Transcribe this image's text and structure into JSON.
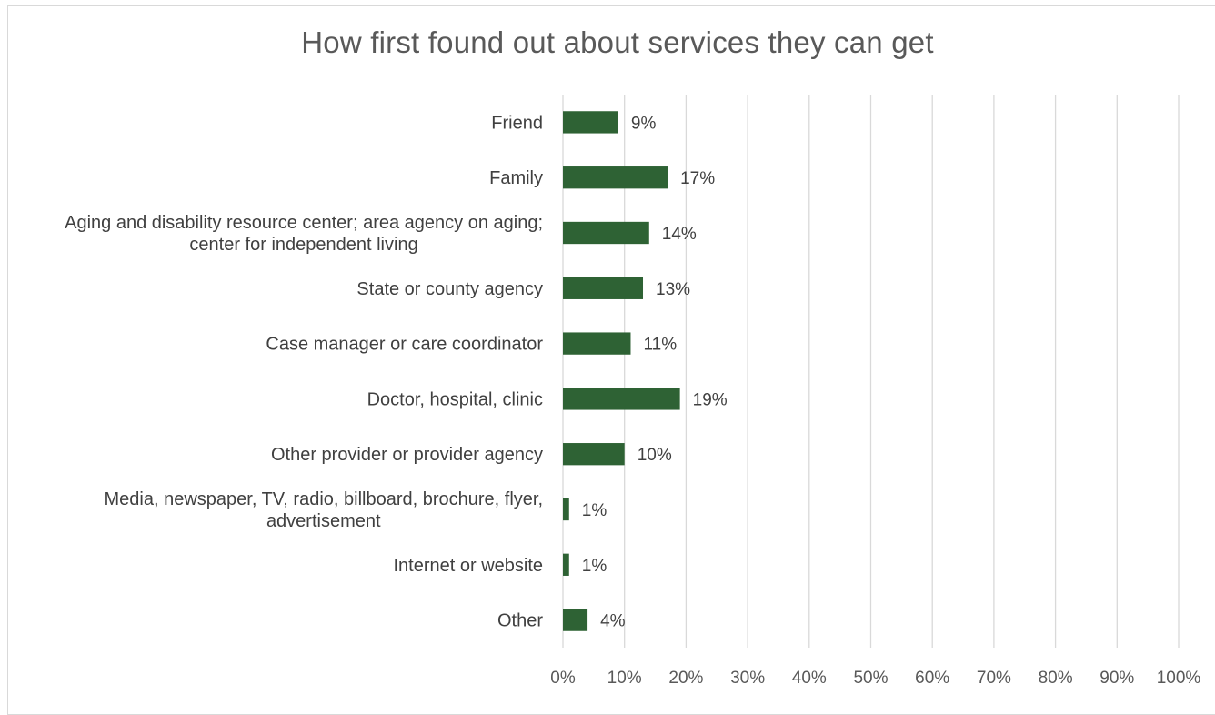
{
  "chart_data": {
    "type": "bar",
    "orientation": "horizontal",
    "title": "How first found out about services they can get",
    "xlabel": "",
    "ylabel": "",
    "xlim": [
      0,
      100
    ],
    "grid": true,
    "legend": "none",
    "bar_color": "#2e6234",
    "categories": [
      [
        "Friend"
      ],
      [
        "Family"
      ],
      [
        "Aging and disability resource center; area agency on aging;",
        "center for independent living"
      ],
      [
        "State or county agency"
      ],
      [
        "Case manager or care coordinator"
      ],
      [
        "Doctor, hospital, clinic"
      ],
      [
        "Other provider or provider agency"
      ],
      [
        "Media, newspaper, TV, radio, billboard, brochure, flyer,",
        "advertisement"
      ],
      [
        "Internet or website"
      ],
      [
        "Other"
      ]
    ],
    "values": [
      9,
      17,
      14,
      13,
      11,
      19,
      10,
      1,
      1,
      4
    ],
    "value_labels": [
      "9%",
      "17%",
      "14%",
      "13%",
      "11%",
      "19%",
      "10%",
      "1%",
      "1%",
      "4%"
    ],
    "ticks": [
      "0%",
      "10%",
      "20%",
      "30%",
      "40%",
      "50%",
      "60%",
      "70%",
      "80%",
      "90%",
      "100%"
    ],
    "tick_values": [
      0,
      10,
      20,
      30,
      40,
      50,
      60,
      70,
      80,
      90,
      100
    ]
  }
}
